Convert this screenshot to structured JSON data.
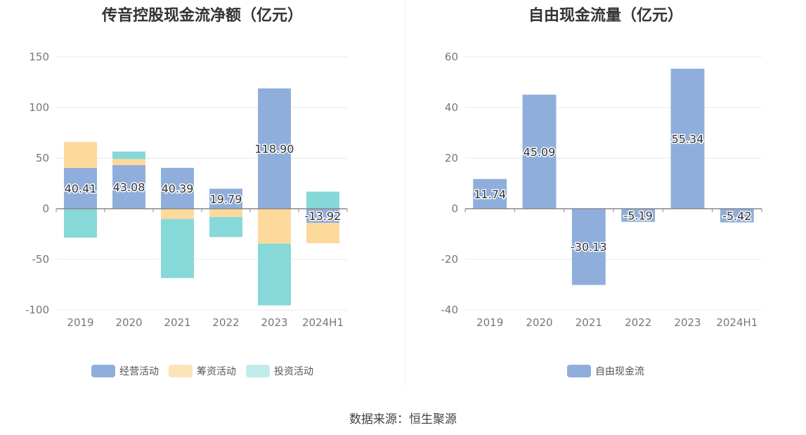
{
  "source_text": "数据来源：恒生聚源",
  "colors": {
    "operating": "#8faedc",
    "financing": "#fdd99b",
    "investing": "#86d8d9",
    "free_cash_flow": "#8faedc",
    "grid": "#e6e9f0",
    "axis": "#888888",
    "tick_text": "#777777"
  },
  "chart_data": [
    {
      "type": "bar",
      "stacked": true,
      "title": "传音控股现金流净额（亿元）",
      "categories": [
        "2019",
        "2020",
        "2021",
        "2022",
        "2023",
        "2024H1"
      ],
      "ylim": [
        -100,
        150
      ],
      "yticks": [
        150,
        100,
        50,
        0,
        -50,
        -100
      ],
      "grid": true,
      "legend_position": "bottom",
      "series": [
        {
          "name": "经营活动",
          "key": "operating",
          "values": [
            40.41,
            43.08,
            40.39,
            19.79,
            118.9,
            -13.92
          ]
        },
        {
          "name": "筹资活动",
          "key": "financing",
          "values": [
            25.5,
            6.0,
            -10.2,
            -8.2,
            -34.5,
            -20.2
          ]
        },
        {
          "name": "投资活动",
          "key": "investing",
          "values": [
            -28.6,
            7.4,
            -58.3,
            -19.8,
            -61.0,
            16.9
          ]
        }
      ],
      "data_labels": [
        "40.41",
        "43.08",
        "40.39",
        "19.79",
        "118.90",
        "-13.92"
      ]
    },
    {
      "type": "bar",
      "title": "自由现金流量（亿元）",
      "categories": [
        "2019",
        "2020",
        "2021",
        "2022",
        "2023",
        "2024H1"
      ],
      "ylim": [
        -40,
        60
      ],
      "yticks": [
        60,
        40,
        20,
        0,
        -20,
        -40
      ],
      "grid": true,
      "legend_position": "bottom",
      "series": [
        {
          "name": "自由现金流",
          "key": "free_cash_flow",
          "values": [
            11.74,
            45.09,
            -30.13,
            -5.19,
            55.34,
            -5.42
          ]
        }
      ],
      "data_labels": [
        "11.74",
        "45.09",
        "-30.13",
        "-5.19",
        "55.34",
        "-5.42"
      ]
    }
  ]
}
